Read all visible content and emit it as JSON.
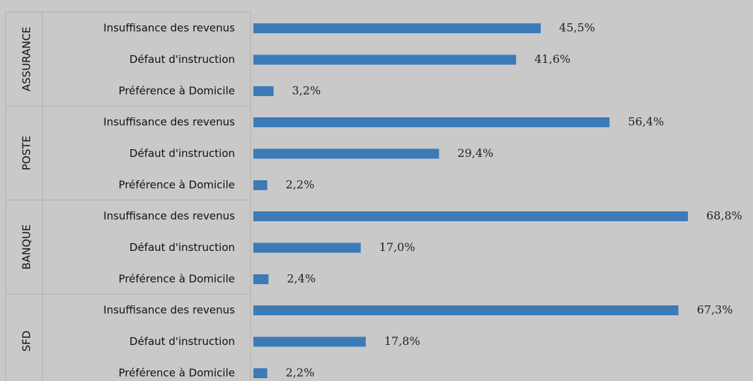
{
  "chart_data": {
    "type": "bar",
    "orientation": "horizontal",
    "groups": [
      {
        "name": "ASSURANCE",
        "categories": [
          "Insuffisance des revenus",
          "Défaut d'instruction",
          "Préférence à Domicile"
        ],
        "values": [
          45.5,
          41.6,
          3.2
        ],
        "value_labels": [
          "45,5%",
          "41,6%",
          "3,2%"
        ]
      },
      {
        "name": "POSTE",
        "categories": [
          "Insuffisance des revenus",
          "Défaut d'instruction",
          "Préférence à Domicile"
        ],
        "values": [
          56.4,
          29.4,
          2.2
        ],
        "value_labels": [
          "56,4%",
          "29,4%",
          "2,2%"
        ]
      },
      {
        "name": "BANQUE",
        "categories": [
          "Insuffisance des revenus",
          "Défaut d'instruction",
          "Préférence à Domicile"
        ],
        "values": [
          68.8,
          17.0,
          2.4
        ],
        "value_labels": [
          "68,8%",
          "17,0%",
          "2,4%"
        ]
      },
      {
        "name": "SFD",
        "categories": [
          "Insuffisance des revenus",
          "Défaut d'instruction",
          "Préférence à Domicile"
        ],
        "values": [
          67.3,
          17.8,
          2.2
        ],
        "value_labels": [
          "67,3%",
          "17,8%",
          "2,2%"
        ]
      }
    ],
    "xlim": [
      0,
      70
    ],
    "grid": false,
    "bar_color": "#3d7ab8",
    "background_color": "#c9c9c9"
  }
}
